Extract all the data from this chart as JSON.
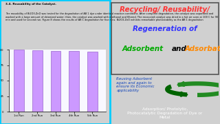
{
  "bar_labels": [
    "1st Run",
    "2nd Run",
    "3rd Run",
    "4th Run",
    "5th Run"
  ],
  "bar_values": [
    99.5,
    98.5,
    97.5,
    97.8,
    97.2
  ],
  "bar_color": "#CC99FF",
  "bar_edge_color": "#9966CC",
  "ylim": [
    0,
    100
  ],
  "ylabel": "% of AB-1 degradation",
  "title_text": "3.4. Reusability of the Catalyst.",
  "body_text": "The reusability of Bi2O3-ZnO was tested for the degradation of AB 1 dye under identical reaction conditions. After complete degradation, the catalyst was separated and washed with a large amount of deionized water; then, the catalyst was washed with methanol and filtered. The recovered catalyst was dried in a hot air oven at 100 C for 90 min and used for second run. Figure 8 shows the results of AB 1 degradation for five runs. Bi2O3-ZnO exhibits remarkable photostability as the AB 1 degradation",
  "middle_text": "Reusing Adsorbent\nagain and again to\nensure its Economic\napplicability",
  "bottom_text": "Adsorption/ Photolytic,\nPhotocatalytic Degradation of Dye or\nMetal",
  "recycling_color": "#FF3333",
  "regeneration_color": "#3333FF",
  "adsorbent_color": "#00AA00",
  "adsorbate_color": "#FF8800",
  "floor_color": "#D4C882",
  "floor_edge_color": "#B8A855",
  "recycle_green": "#228B22",
  "recycle_dark": "#006400"
}
